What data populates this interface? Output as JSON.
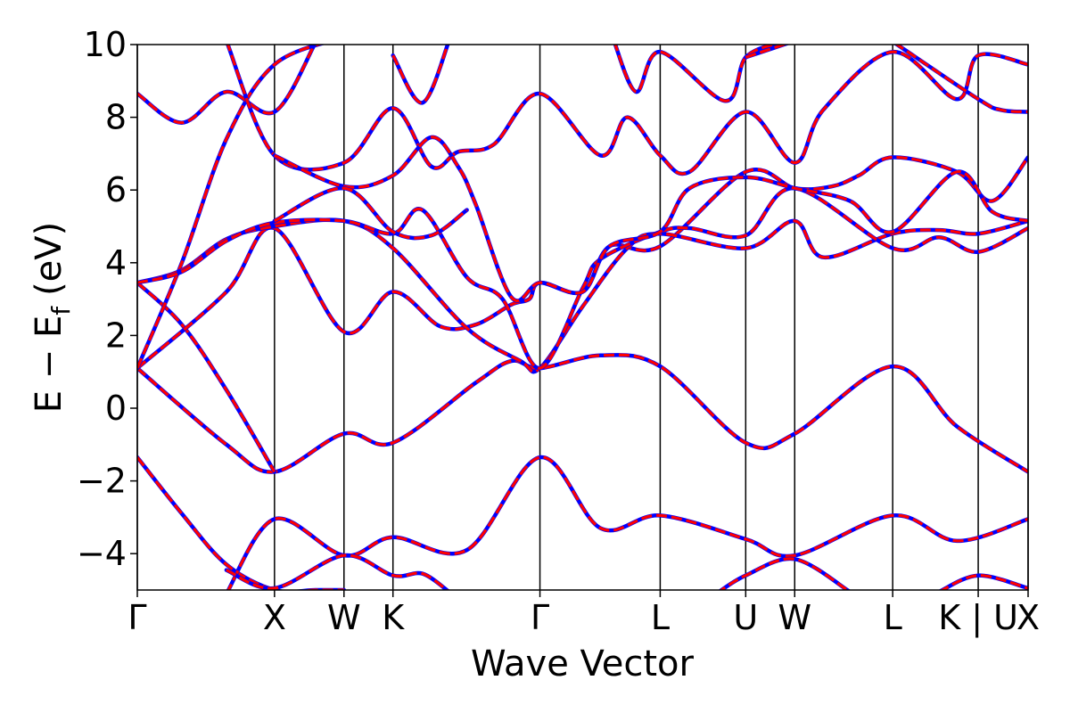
{
  "chart_data": {
    "type": "line",
    "xlabel": "Wave Vector",
    "ylabel_main": "E − E",
    "ylabel_sub": "f",
    "ylabel_unit": "(eV)",
    "ylim": [
      -5,
      10
    ],
    "yticks": [
      10,
      8,
      6,
      4,
      2,
      0,
      -2,
      -4
    ],
    "ytick_labels": [
      "10",
      "8",
      "6",
      "4",
      "2",
      "0",
      "−2",
      "−4"
    ],
    "xlim": [
      0,
      1
    ],
    "high_symmetry_points": [
      {
        "label": "Γ",
        "x": 0.0
      },
      {
        "label": "X",
        "x": 0.154
      },
      {
        "label": "W",
        "x": 0.232
      },
      {
        "label": "K",
        "x": 0.287
      },
      {
        "label": "Γ",
        "x": 0.452
      },
      {
        "label": "L",
        "x": 0.587
      },
      {
        "label": "U",
        "x": 0.683
      },
      {
        "label": "W",
        "x": 0.738
      },
      {
        "label": "L",
        "x": 0.848
      },
      {
        "label": "K | U",
        "x": 0.944
      },
      {
        "label": "X",
        "x": 1.0
      }
    ],
    "series_colors": {
      "reference": "#0000ff",
      "overlay": "#ff0000"
    },
    "bands": [
      [
        [
          0,
          -1.35
        ],
        [
          0.05,
          -2.9
        ],
        [
          0.1,
          -4.3
        ],
        [
          0.154,
          -5
        ],
        [
          0.2,
          -5.0
        ],
        [
          0.232,
          -5.0
        ]
      ],
      [
        [
          0.1,
          -5.1
        ],
        [
          0.154,
          -3.05
        ],
        [
          0.232,
          -4.05
        ],
        [
          0.287,
          -3.55
        ],
        [
          0.37,
          -3.9
        ],
        [
          0.452,
          -1.35
        ],
        [
          0.52,
          -3.3
        ],
        [
          0.587,
          -2.95
        ],
        [
          0.683,
          -3.6
        ],
        [
          0.738,
          -4.05
        ],
        [
          0.848,
          -2.95
        ],
        [
          0.92,
          -3.65
        ],
        [
          1.0,
          -3.05
        ]
      ],
      [
        [
          0.1,
          -4.45
        ],
        [
          0.154,
          -4.95
        ],
        [
          0.232,
          -4.05
        ],
        [
          0.287,
          -4.6
        ],
        [
          0.32,
          -4.55
        ],
        [
          0.35,
          -5.05
        ]
      ],
      [
        [
          0.65,
          -5.1
        ],
        [
          0.683,
          -4.6
        ],
        [
          0.738,
          -4.15
        ],
        [
          0.8,
          -5.05
        ]
      ],
      [
        [
          0.9,
          -5.05
        ],
        [
          0.944,
          -4.6
        ],
        [
          1.0,
          -4.95
        ]
      ],
      [
        [
          0,
          1.1
        ],
        [
          0.1,
          -1.0
        ],
        [
          0.154,
          -1.75
        ],
        [
          0.232,
          -0.7
        ],
        [
          0.287,
          -0.95
        ],
        [
          0.38,
          0.7
        ],
        [
          0.42,
          1.3
        ],
        [
          0.452,
          1.1
        ],
        [
          0.52,
          1.45
        ],
        [
          0.587,
          1.15
        ],
        [
          0.683,
          -0.95
        ],
        [
          0.738,
          -0.7
        ],
        [
          0.848,
          1.15
        ],
        [
          0.92,
          -0.5
        ],
        [
          1.0,
          -1.75
        ]
      ],
      [
        [
          0,
          3.45
        ],
        [
          0.05,
          2.3
        ],
        [
          0.1,
          0.5
        ],
        [
          0.154,
          -1.75
        ]
      ],
      [
        [
          0,
          1.1
        ],
        [
          0.1,
          3.2
        ],
        [
          0.154,
          4.95
        ],
        [
          0.232,
          2.1
        ],
        [
          0.287,
          3.2
        ],
        [
          0.34,
          2.25
        ],
        [
          0.38,
          2.3
        ],
        [
          0.42,
          2.85
        ],
        [
          0.44,
          3.0
        ],
        [
          0.452,
          3.45
        ],
        [
          0.5,
          3.2
        ],
        [
          0.53,
          4.45
        ],
        [
          0.587,
          4.45
        ],
        [
          0.683,
          6.5
        ],
        [
          0.738,
          6.05
        ],
        [
          0.78,
          6.1
        ],
        [
          0.81,
          6.4
        ],
        [
          0.848,
          6.9
        ],
        [
          0.92,
          6.5
        ],
        [
          0.96,
          5.7
        ],
        [
          1.0,
          6.9
        ]
      ],
      [
        [
          0,
          1.1
        ],
        [
          0.05,
          4.0
        ],
        [
          0.1,
          7.4
        ],
        [
          0.154,
          9.45
        ],
        [
          0.232,
          10.2
        ]
      ],
      [
        [
          0,
          3.45
        ],
        [
          0.05,
          3.8
        ],
        [
          0.1,
          4.65
        ],
        [
          0.154,
          5.0
        ],
        [
          0.232,
          5.15
        ],
        [
          0.287,
          4.4
        ],
        [
          0.37,
          2.2
        ],
        [
          0.43,
          1.3
        ],
        [
          0.452,
          1.1
        ],
        [
          0.5,
          2.8
        ],
        [
          0.55,
          4.4
        ],
        [
          0.587,
          4.8
        ],
        [
          0.683,
          4.4
        ],
        [
          0.738,
          5.15
        ],
        [
          0.77,
          4.15
        ],
        [
          0.848,
          4.8
        ],
        [
          0.9,
          4.9
        ],
        [
          0.944,
          4.8
        ],
        [
          1.0,
          5.15
        ]
      ],
      [
        [
          0,
          3.45
        ],
        [
          0.05,
          3.75
        ],
        [
          0.1,
          4.6
        ],
        [
          0.154,
          5.1
        ],
        [
          0.232,
          5.15
        ],
        [
          0.287,
          4.8
        ],
        [
          0.32,
          5.45
        ],
        [
          0.37,
          3.6
        ],
        [
          0.41,
          3.0
        ],
        [
          0.452,
          1.1
        ],
        [
          0.5,
          3.3
        ],
        [
          0.52,
          4.1
        ],
        [
          0.587,
          4.85
        ],
        [
          0.62,
          4.95
        ],
        [
          0.683,
          4.75
        ],
        [
          0.738,
          6.05
        ],
        [
          0.848,
          4.4
        ],
        [
          0.9,
          4.7
        ],
        [
          0.944,
          4.3
        ],
        [
          1.0,
          4.95
        ]
      ],
      [
        [
          0,
          8.65
        ],
        [
          0.05,
          7.85
        ],
        [
          0.1,
          8.7
        ],
        [
          0.154,
          8.15
        ],
        [
          0.2,
          10.05
        ]
      ],
      [
        [
          0.1,
          10.1
        ],
        [
          0.154,
          6.95
        ],
        [
          0.232,
          6.75
        ],
        [
          0.287,
          8.25
        ],
        [
          0.33,
          6.65
        ],
        [
          0.36,
          7.05
        ],
        [
          0.4,
          7.25
        ],
        [
          0.452,
          8.65
        ],
        [
          0.52,
          6.95
        ],
        [
          0.55,
          8.0
        ],
        [
          0.587,
          6.95
        ],
        [
          0.62,
          6.5
        ],
        [
          0.683,
          8.15
        ],
        [
          0.738,
          6.75
        ],
        [
          0.77,
          8.2
        ],
        [
          0.848,
          9.8
        ],
        [
          0.92,
          8.5
        ],
        [
          0.944,
          9.7
        ],
        [
          1.0,
          9.45
        ]
      ],
      [
        [
          0.154,
          6.95
        ],
        [
          0.232,
          6.1
        ],
        [
          0.287,
          6.4
        ],
        [
          0.33,
          7.45
        ],
        [
          0.36,
          6.65
        ],
        [
          0.38,
          5.6
        ],
        [
          0.42,
          3.05
        ],
        [
          0.452,
          3.45
        ],
        [
          0.5,
          3.2
        ],
        [
          0.53,
          4.45
        ],
        [
          0.587,
          4.85
        ],
        [
          0.62,
          6.05
        ],
        [
          0.683,
          6.35
        ],
        [
          0.738,
          6.05
        ],
        [
          0.8,
          5.7
        ],
        [
          0.848,
          4.85
        ],
        [
          0.92,
          6.5
        ],
        [
          0.96,
          5.4
        ],
        [
          1.0,
          5.15
        ]
      ],
      [
        [
          0.154,
          5.15
        ],
        [
          0.232,
          6.05
        ],
        [
          0.287,
          4.85
        ],
        [
          0.33,
          4.75
        ],
        [
          0.37,
          5.45
        ]
      ],
      [
        [
          0.287,
          9.7
        ],
        [
          0.32,
          8.4
        ],
        [
          0.35,
          10.1
        ]
      ],
      [
        [
          0.535,
          10.1
        ],
        [
          0.56,
          8.7
        ],
        [
          0.587,
          9.8
        ],
        [
          0.66,
          8.45
        ],
        [
          0.683,
          9.65
        ],
        [
          0.72,
          10.05
        ]
      ],
      [
        [
          0.683,
          9.65
        ],
        [
          0.738,
          10.1
        ]
      ],
      [
        [
          0.85,
          10.05
        ],
        [
          0.944,
          8.5
        ],
        [
          0.97,
          8.2
        ],
        [
          1.0,
          8.15
        ]
      ]
    ]
  }
}
